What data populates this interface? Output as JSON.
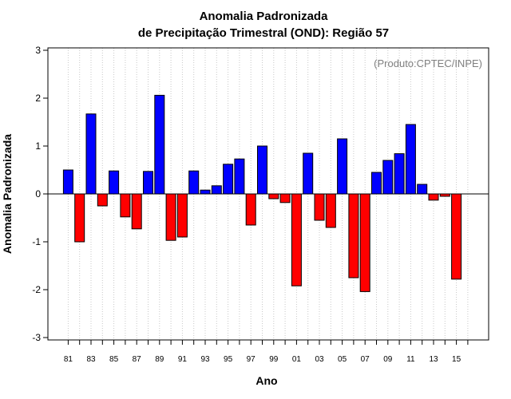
{
  "chart_data": {
    "type": "bar",
    "title": "Anomalia Padronizada",
    "subtitle": "de Precipitação Trimestral (OND): Região 57",
    "xlabel": "Ano",
    "ylabel": "Anomalia Padronizada",
    "annotation": "(Produto:CPTEC/INPE)",
    "ylim": [
      -3,
      3
    ],
    "yticks": [
      -3,
      -2,
      -1,
      0,
      1,
      2,
      3
    ],
    "grid": "vertical-dotted",
    "positive_color": "#0000ff",
    "negative_color": "#ff0000",
    "categories": [
      "81",
      "82",
      "83",
      "84",
      "85",
      "86",
      "87",
      "88",
      "89",
      "90",
      "91",
      "92",
      "93",
      "94",
      "95",
      "96",
      "97",
      "98",
      "99",
      "00",
      "01",
      "02",
      "03",
      "04",
      "05",
      "06",
      "07",
      "08",
      "09",
      "10",
      "11",
      "12",
      "13",
      "14",
      "15"
    ],
    "values": [
      0.5,
      -1.0,
      1.67,
      -0.25,
      0.48,
      -0.48,
      -0.73,
      0.47,
      2.06,
      -0.97,
      -0.9,
      0.48,
      0.08,
      0.17,
      0.62,
      0.73,
      -0.65,
      1.0,
      -0.1,
      -0.18,
      -1.92,
      0.85,
      -0.55,
      -0.7,
      1.15,
      -1.75,
      -2.04,
      0.45,
      0.7,
      0.84,
      1.45,
      0.2,
      -0.13,
      -0.05,
      -1.78
    ],
    "xtick_labels": [
      "81",
      "83",
      "85",
      "87",
      "89",
      "91",
      "93",
      "95",
      "97",
      "99",
      "01",
      "03",
      "05",
      "07",
      "09",
      "11",
      "13",
      "15"
    ]
  }
}
